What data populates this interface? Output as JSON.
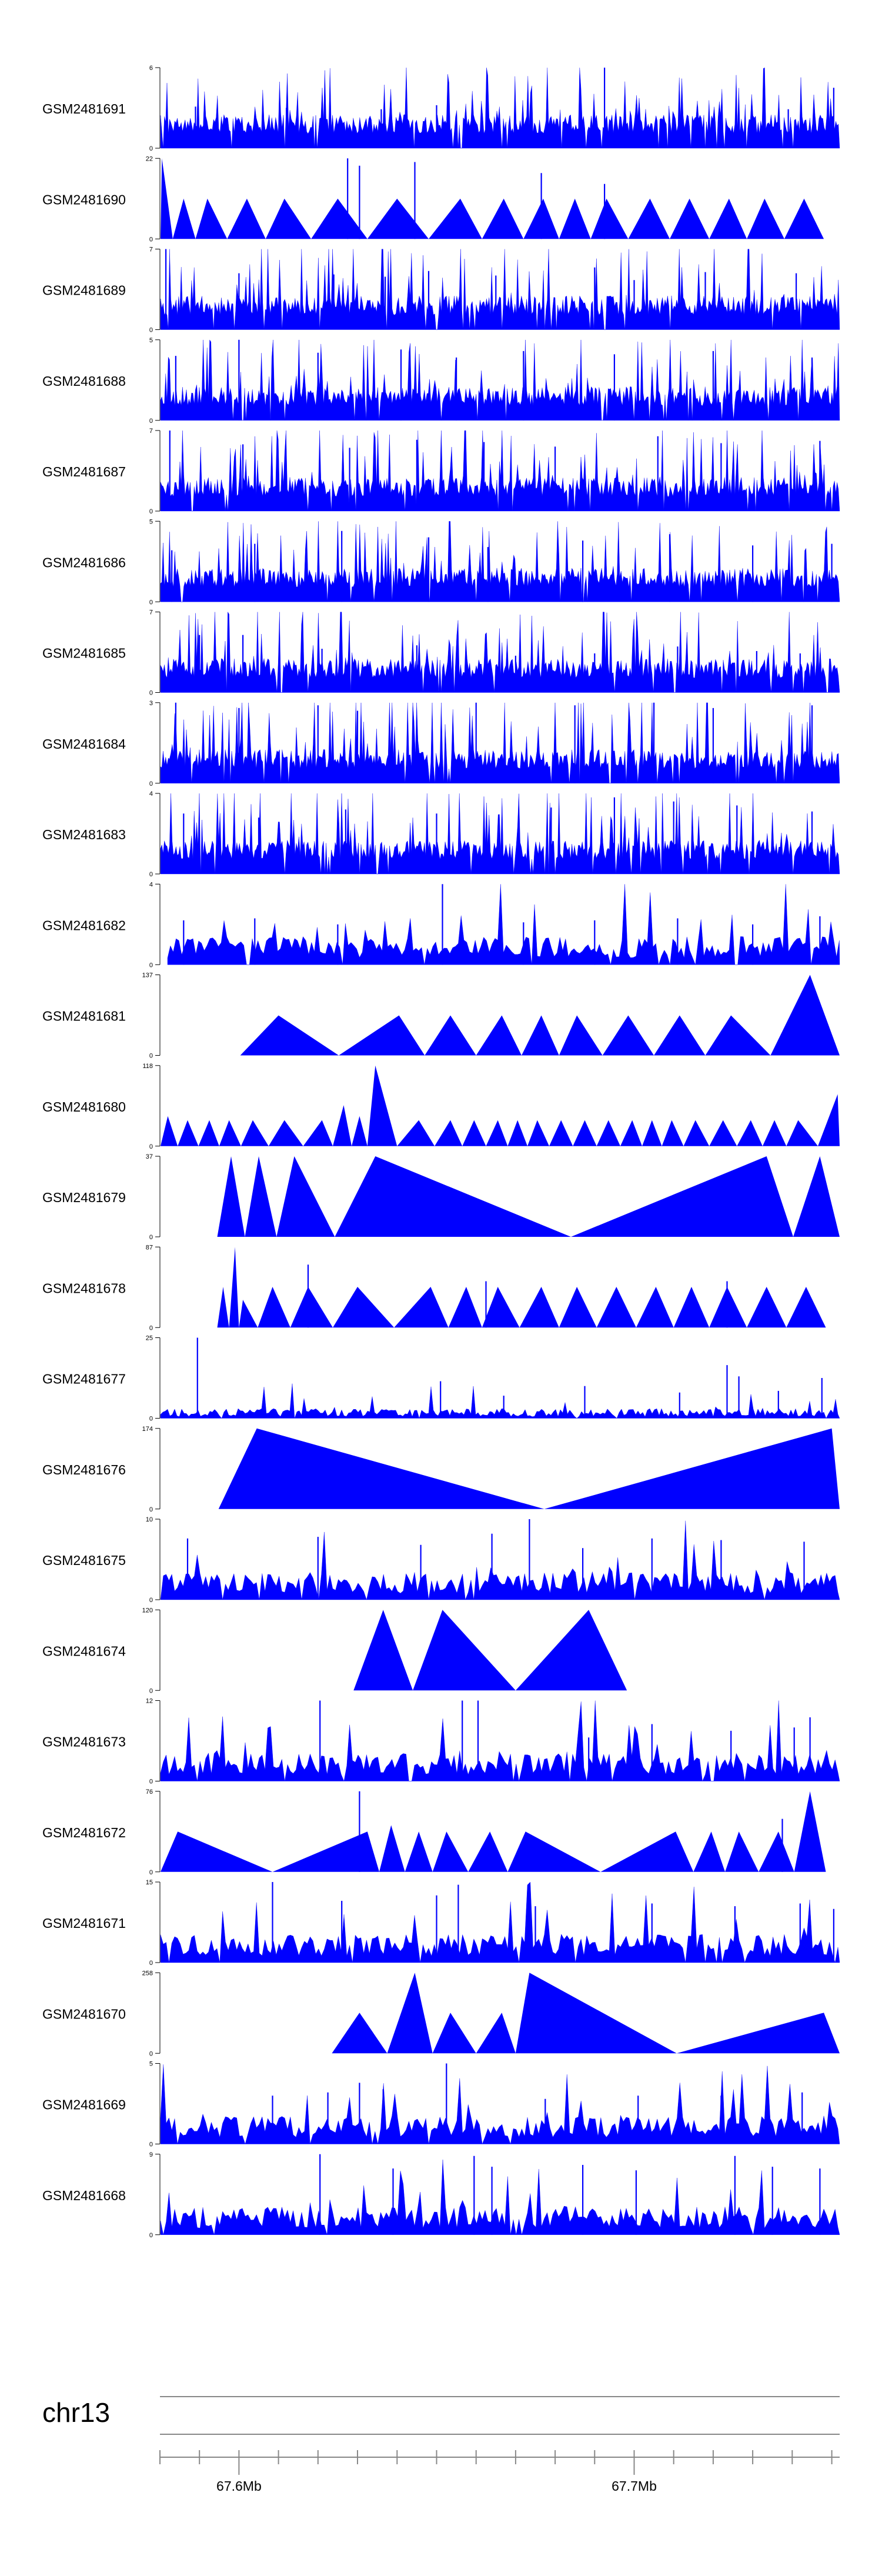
{
  "chart_data": {
    "type": "area",
    "title": "",
    "chromosome": "chr13",
    "x_range": [
      67.58,
      67.752
    ],
    "x_unit": "Mb",
    "x_ticks": [
      67.6,
      67.7
    ],
    "x_tick_labels": [
      "67.6Mb",
      "67.7Mb"
    ],
    "fill_color": "#0000ff",
    "series": [
      {
        "name": "GSM2481691",
        "ymin": 0,
        "ymax": 6,
        "style": "dense",
        "seed": 11,
        "spikes": [
          [
            67.589,
            3.1
          ],
          [
            67.612,
            3.0
          ],
          [
            67.636,
            2.9
          ],
          [
            67.65,
            3.2
          ],
          [
            67.674,
            2.8
          ],
          [
            67.6925,
            6.0
          ],
          [
            67.716,
            3.1
          ],
          [
            67.739,
            2.9
          ],
          [
            67.7505,
            4.5
          ]
        ]
      },
      {
        "name": "GSM2481690",
        "ymin": 0,
        "ymax": 22,
        "style": "triangles",
        "seed": 12,
        "peaks": [
          [
            67.5805,
            22
          ],
          [
            67.586,
            11
          ],
          [
            67.592,
            11
          ],
          [
            67.602,
            11
          ],
          [
            67.6115,
            11
          ],
          [
            67.625,
            11
          ],
          [
            67.64,
            11
          ],
          [
            67.656,
            11
          ],
          [
            67.667,
            11
          ],
          [
            67.677,
            11
          ],
          [
            67.685,
            11
          ],
          [
            67.693,
            11
          ],
          [
            67.704,
            11
          ],
          [
            67.714,
            11
          ],
          [
            67.724,
            11
          ],
          [
            67.733,
            11
          ],
          [
            67.743,
            11
          ]
        ],
        "spikes": [
          [
            67.6275,
            22
          ],
          [
            67.6305,
            20
          ],
          [
            67.6445,
            21
          ],
          [
            67.6765,
            18
          ],
          [
            67.6925,
            15
          ]
        ]
      },
      {
        "name": "GSM2481689",
        "ymin": 0,
        "ymax": 7,
        "style": "dense",
        "seed": 13,
        "spikes": [
          [
            67.5815,
            7.0
          ],
          [
            67.6,
            4.9
          ],
          [
            67.624,
            4.8
          ],
          [
            67.637,
            4.6
          ],
          [
            67.648,
            5.1
          ],
          [
            67.665,
            4.7
          ],
          [
            67.69,
            5.4
          ],
          [
            67.7,
            4.3
          ],
          [
            67.718,
            5.0
          ],
          [
            67.741,
            4.9
          ]
        ]
      },
      {
        "name": "GSM2481688",
        "ymin": 0,
        "ymax": 5,
        "style": "dense",
        "seed": 14,
        "spikes": [
          [
            67.584,
            4.0
          ],
          [
            67.6,
            5.0
          ],
          [
            67.62,
            4.2
          ],
          [
            67.641,
            4.4
          ],
          [
            67.655,
            3.9
          ],
          [
            67.672,
            4.3
          ],
          [
            67.695,
            4.1
          ],
          [
            67.72,
            4.3
          ],
          [
            67.745,
            3.9
          ]
        ]
      },
      {
        "name": "GSM2481687",
        "ymin": 0,
        "ymax": 7,
        "style": "dense",
        "seed": 15,
        "spikes": [
          [
            67.5825,
            7.0
          ],
          [
            67.601,
            5.8
          ],
          [
            67.628,
            5.5
          ],
          [
            67.645,
            6.2
          ],
          [
            67.662,
            6.0
          ],
          [
            67.68,
            5.6
          ],
          [
            67.706,
            6.5
          ],
          [
            67.722,
            5.9
          ],
          [
            67.747,
            6.1
          ]
        ]
      },
      {
        "name": "GSM2481686",
        "ymin": 0,
        "ymax": 5,
        "style": "dense",
        "seed": 16,
        "spikes": [
          [
            67.583,
            3.2
          ],
          [
            67.604,
            3.6
          ],
          [
            67.626,
            4.4
          ],
          [
            67.648,
            4.0
          ],
          [
            67.663,
            3.4
          ],
          [
            67.687,
            3.8
          ],
          [
            67.709,
            4.2
          ],
          [
            67.73,
            3.5
          ],
          [
            67.75,
            3.6
          ]
        ]
      },
      {
        "name": "GSM2481685",
        "ymin": 0,
        "ymax": 7,
        "style": "dense",
        "seed": 17,
        "spikes": [
          [
            67.59,
            5.0
          ],
          [
            67.601,
            5.0
          ],
          [
            67.621,
            3.8
          ],
          [
            67.645,
            4.1
          ],
          [
            67.67,
            3.2
          ],
          [
            67.69,
            3.4
          ],
          [
            67.711,
            4.0
          ],
          [
            67.731,
            3.6
          ],
          [
            67.742,
            3.4
          ]
        ]
      },
      {
        "name": "GSM2481684",
        "ymin": 0,
        "ymax": 3,
        "style": "dense",
        "seed": 18,
        "spikes": [
          [
            67.584,
            3.0
          ],
          [
            67.6,
            2.8
          ],
          [
            67.62,
            2.9
          ],
          [
            67.63,
            2.7
          ],
          [
            67.66,
            3.0
          ],
          [
            67.685,
            2.9
          ],
          [
            67.705,
            3.0
          ],
          [
            67.72,
            2.8
          ],
          [
            67.745,
            2.9
          ]
        ]
      },
      {
        "name": "GSM2481683",
        "ymin": 0,
        "ymax": 4,
        "style": "dense",
        "seed": 19,
        "spikes": [
          [
            67.586,
            3.0
          ],
          [
            67.605,
            2.8
          ],
          [
            67.627,
            3.2
          ],
          [
            67.65,
            3.0
          ],
          [
            67.679,
            3.3
          ],
          [
            67.695,
            3.8
          ],
          [
            67.71,
            3.6
          ],
          [
            67.726,
            3.4
          ],
          [
            67.745,
            3.1
          ]
        ]
      },
      {
        "name": "GSM2481682",
        "ymin": 0,
        "ymax": 4,
        "style": "sparse",
        "seed": 20,
        "spikes": [
          [
            67.586,
            2.2
          ],
          [
            67.604,
            2.3
          ],
          [
            67.625,
            2.0
          ],
          [
            67.6515,
            4.0
          ],
          [
            67.672,
            2.1
          ],
          [
            67.69,
            2.2
          ],
          [
            67.711,
            2.3
          ],
          [
            67.73,
            2.0
          ],
          [
            67.747,
            2.4
          ]
        ]
      },
      {
        "name": "GSM2481681",
        "ymin": 0,
        "ymax": 137,
        "style": "triangles",
        "seed": 21,
        "peaks": [
          [
            67.61,
            68
          ],
          [
            67.6405,
            68
          ],
          [
            67.6535,
            68
          ],
          [
            67.6665,
            68
          ],
          [
            67.6765,
            68
          ],
          [
            67.6855,
            68
          ],
          [
            67.6985,
            68
          ],
          [
            67.7115,
            68
          ],
          [
            67.7245,
            68
          ],
          [
            67.7445,
            137
          ]
        ]
      },
      {
        "name": "GSM2481680",
        "ymin": 0,
        "ymax": 118,
        "style": "triangles",
        "seed": 22,
        "peaks": [
          [
            67.582,
            44
          ],
          [
            67.587,
            38
          ],
          [
            67.5925,
            38
          ],
          [
            67.5975,
            38
          ],
          [
            67.6035,
            38
          ],
          [
            67.6115,
            38
          ],
          [
            67.621,
            38
          ],
          [
            67.6265,
            60
          ],
          [
            67.6305,
            44
          ],
          [
            67.6345,
            118
          ],
          [
            67.6455,
            38
          ],
          [
            67.6535,
            38
          ],
          [
            67.6595,
            38
          ],
          [
            67.6655,
            38
          ],
          [
            67.6705,
            38
          ],
          [
            67.6755,
            38
          ],
          [
            67.6815,
            38
          ],
          [
            67.6875,
            38
          ],
          [
            67.6935,
            38
          ],
          [
            67.6995,
            38
          ],
          [
            67.7045,
            38
          ],
          [
            67.7095,
            38
          ],
          [
            67.7155,
            38
          ],
          [
            67.7225,
            38
          ],
          [
            67.7295,
            38
          ],
          [
            67.7355,
            38
          ],
          [
            67.7415,
            38
          ],
          [
            67.7515,
            76
          ]
        ]
      },
      {
        "name": "GSM2481679",
        "ymin": 0,
        "ymax": 37,
        "style": "triangles",
        "seed": 23,
        "peaks": [
          [
            67.598,
            37
          ],
          [
            67.605,
            37
          ],
          [
            67.614,
            37
          ],
          [
            67.6345,
            37
          ],
          [
            67.7335,
            37
          ],
          [
            67.747,
            37
          ]
        ]
      },
      {
        "name": "GSM2481678",
        "ymin": 0,
        "ymax": 87,
        "style": "triangles",
        "seed": 24,
        "peaks": [
          [
            67.596,
            44
          ],
          [
            67.599,
            87
          ],
          [
            67.601,
            30
          ],
          [
            67.6085,
            44
          ],
          [
            67.6175,
            44
          ],
          [
            67.63,
            44
          ],
          [
            67.6485,
            44
          ],
          [
            67.6575,
            44
          ],
          [
            67.6655,
            44
          ],
          [
            67.6765,
            44
          ],
          [
            67.6855,
            44
          ],
          [
            67.6955,
            44
          ],
          [
            67.7055,
            44
          ],
          [
            67.7145,
            44
          ],
          [
            67.7235,
            44
          ],
          [
            67.7335,
            44
          ],
          [
            67.7435,
            44
          ]
        ],
        "spikes": [
          [
            67.6175,
            68
          ],
          [
            67.6625,
            50
          ],
          [
            67.7235,
            50
          ]
        ]
      },
      {
        "name": "GSM2481677",
        "ymin": 0,
        "ymax": 25,
        "style": "sparse-low",
        "seed": 25,
        "spikes": [
          [
            67.5895,
            25.0
          ],
          [
            67.651,
            11.5
          ],
          [
            67.667,
            7.0
          ],
          [
            67.6875,
            10.0
          ],
          [
            67.7115,
            8.0
          ],
          [
            67.7235,
            16.5
          ],
          [
            67.7265,
            13.0
          ],
          [
            67.7365,
            8.5
          ],
          [
            67.7475,
            12.5
          ]
        ]
      },
      {
        "name": "GSM2481676",
        "ymin": 0,
        "ymax": 174,
        "style": "triangles",
        "seed": 26,
        "peaks": [
          [
            67.6045,
            174
          ],
          [
            67.75,
            174
          ]
        ]
      },
      {
        "name": "GSM2481675",
        "ymin": 0,
        "ymax": 10,
        "style": "sparse",
        "seed": 27,
        "spikes": [
          [
            67.587,
            7.6
          ],
          [
            67.62,
            7.8
          ],
          [
            67.646,
            6.8
          ],
          [
            67.664,
            8.2
          ],
          [
            67.6735,
            10.0
          ],
          [
            67.687,
            6.4
          ],
          [
            67.7045,
            7.6
          ],
          [
            67.722,
            7.4
          ],
          [
            67.743,
            7.2
          ]
        ]
      },
      {
        "name": "GSM2481674",
        "ymin": 0,
        "ymax": 120,
        "style": "triangles",
        "seed": 28,
        "peaks": [
          [
            67.6365,
            120
          ],
          [
            67.6515,
            120
          ],
          [
            67.6885,
            120
          ]
        ]
      },
      {
        "name": "GSM2481673",
        "ymin": 0,
        "ymax": 12,
        "style": "sparse",
        "seed": 29,
        "spikes": [
          [
            67.6205,
            12.0
          ],
          [
            67.6565,
            12.0
          ],
          [
            67.6605,
            12.0
          ],
          [
            67.6885,
            6.5
          ],
          [
            67.7045,
            8.5
          ],
          [
            67.7245,
            7.5
          ],
          [
            67.7405,
            8.0
          ],
          [
            67.7445,
            9.5
          ]
        ]
      },
      {
        "name": "GSM2481672",
        "ymin": 0,
        "ymax": 76,
        "style": "triangles",
        "seed": 30,
        "peaks": [
          [
            67.5845,
            38
          ],
          [
            67.6325,
            38
          ],
          [
            67.6385,
            44
          ],
          [
            67.6455,
            38
          ],
          [
            67.6525,
            38
          ],
          [
            67.6635,
            38
          ],
          [
            67.6725,
            38
          ],
          [
            67.7105,
            38
          ],
          [
            67.7195,
            38
          ],
          [
            67.7265,
            38
          ],
          [
            67.7365,
            38
          ],
          [
            67.7445,
            76
          ]
        ],
        "spikes": [
          [
            67.6305,
            76
          ],
          [
            67.7375,
            50
          ]
        ]
      },
      {
        "name": "GSM2481671",
        "ymin": 0,
        "ymax": 15,
        "style": "sparse",
        "seed": 31,
        "spikes": [
          [
            67.6085,
            15.0
          ],
          [
            67.626,
            11.5
          ],
          [
            67.65,
            12.5
          ],
          [
            67.6555,
            14.5
          ],
          [
            67.675,
            10.5
          ],
          [
            67.7045,
            11.0
          ],
          [
            67.7255,
            10.5
          ],
          [
            67.742,
            11.0
          ],
          [
            67.7505,
            10.0
          ]
        ]
      },
      {
        "name": "GSM2481670",
        "ymin": 0,
        "ymax": 258,
        "style": "triangles",
        "seed": 32,
        "peaks": [
          [
            67.6305,
            130
          ],
          [
            67.6445,
            258
          ],
          [
            67.6535,
            130
          ],
          [
            67.6665,
            130
          ],
          [
            67.6735,
            258
          ],
          [
            67.748,
            130
          ]
        ]
      },
      {
        "name": "GSM2481669",
        "ymin": 0,
        "ymax": 5,
        "style": "sparse",
        "seed": 33,
        "spikes": [
          [
            67.6085,
            3.0
          ],
          [
            67.6225,
            3.2
          ],
          [
            67.6305,
            3.8
          ],
          [
            67.6365,
            3.4
          ],
          [
            67.6525,
            5.0
          ],
          [
            67.6775,
            2.8
          ],
          [
            67.701,
            3.0
          ],
          [
            67.722,
            3.0
          ],
          [
            67.7425,
            3.2
          ]
        ]
      },
      {
        "name": "GSM2481668",
        "ymin": 0,
        "ymax": 9,
        "style": "sparse",
        "seed": 34,
        "spikes": [
          [
            67.6205,
            9.0
          ],
          [
            67.639,
            7.4
          ],
          [
            67.6595,
            8.8
          ],
          [
            67.664,
            7.6
          ],
          [
            67.687,
            7.8
          ],
          [
            67.7005,
            7.2
          ],
          [
            67.7255,
            8.8
          ],
          [
            67.735,
            7.6
          ],
          [
            67.747,
            7.4
          ]
        ]
      }
    ]
  }
}
